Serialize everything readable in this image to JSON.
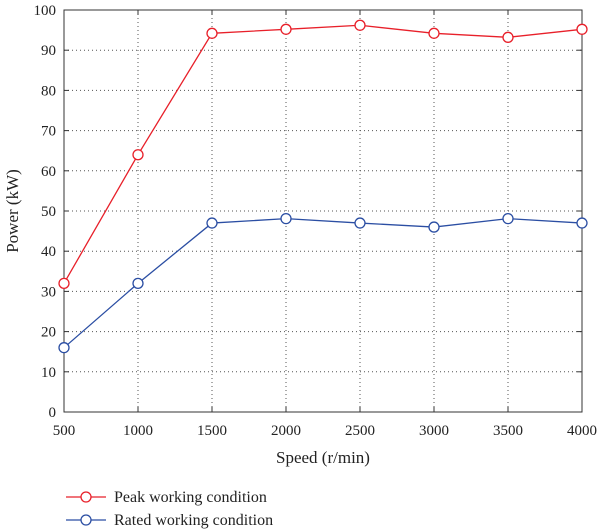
{
  "chart_data": {
    "type": "line",
    "x": [
      500,
      1000,
      1500,
      2000,
      2500,
      3000,
      3500,
      4000
    ],
    "xlabel": "Speed (r/min)",
    "ylabel": "Power (kW)",
    "xlim": [
      500,
      4000
    ],
    "ylim": [
      0,
      100
    ],
    "xticks": [
      500,
      1000,
      1500,
      2000,
      2500,
      3000,
      3500,
      4000
    ],
    "yticks": [
      0,
      10,
      20,
      30,
      40,
      50,
      60,
      70,
      80,
      90,
      100
    ],
    "grid": "dotted",
    "legend_position": "bottom-left",
    "series": [
      {
        "name": "Peak working condition",
        "color": "#e8202a",
        "marker": "circle",
        "values": [
          32,
          64,
          94.2,
          95.2,
          96.2,
          94.2,
          93.2,
          95.2
        ]
      },
      {
        "name": "Rated working condition",
        "color": "#2b4ea3",
        "marker": "circle",
        "values": [
          16,
          32,
          47,
          48.1,
          47,
          46,
          48.1,
          47
        ]
      }
    ]
  }
}
